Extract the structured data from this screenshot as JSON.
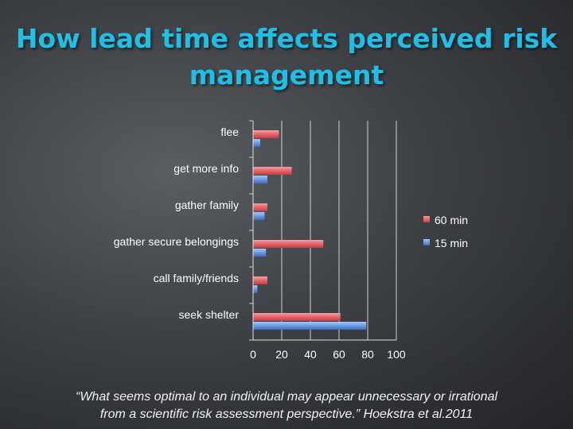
{
  "slide": {
    "title_line1": "How lead time affects perceived risk",
    "title_line2": "management",
    "quote_line1": "“What seems optimal to an individual may appear unnecessary or irrational",
    "quote_line2": "from a scientific risk assessment perspective.” Hoekstra et al.2011"
  },
  "colors": {
    "title": "#1ec0e8",
    "series_60": "#e8636a",
    "series_15": "#6a9be8",
    "text": "#ffffff"
  },
  "chart_data": {
    "type": "bar",
    "orientation": "horizontal",
    "categories": [
      "flee",
      "get more info",
      "gather family",
      "gather secure belongings",
      "call family/friends",
      "seek shelter"
    ],
    "series": [
      {
        "name": "60 min",
        "values": [
          18,
          27,
          10,
          49,
          10,
          61
        ]
      },
      {
        "name": "15 min",
        "values": [
          5,
          10,
          8,
          9,
          3,
          79
        ]
      }
    ],
    "xlim": [
      0,
      100
    ],
    "xticks": [
      "0",
      "20",
      "40",
      "60",
      "80",
      "100"
    ],
    "grid": true,
    "legend": "right",
    "title": "",
    "xlabel": "",
    "ylabel": ""
  }
}
